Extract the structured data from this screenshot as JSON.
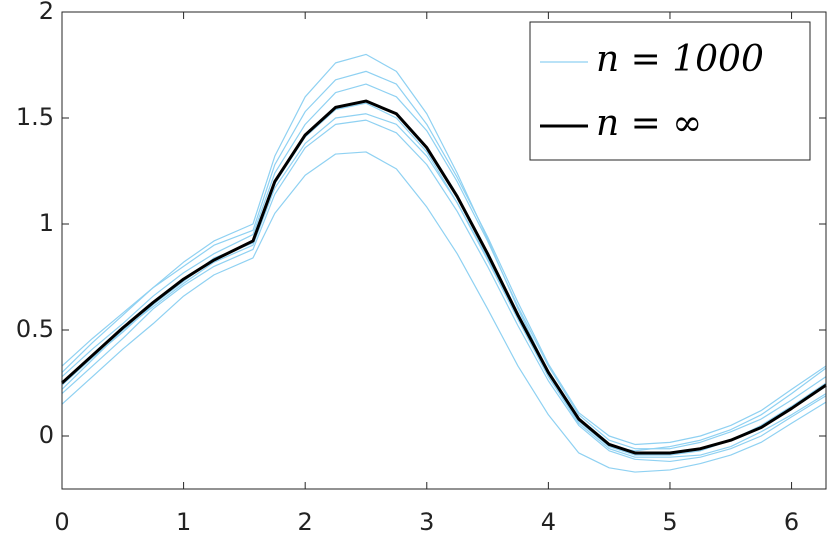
{
  "chart_data": {
    "type": "line",
    "x": [
      0,
      0.25,
      0.5,
      0.75,
      1,
      1.25,
      1.5708,
      1.75,
      2,
      2.25,
      2.5,
      2.75,
      3,
      3.25,
      3.5,
      3.75,
      4,
      4.25,
      4.5,
      4.7124,
      5,
      5.25,
      5.5,
      5.75,
      6,
      6.2832
    ],
    "series": [
      {
        "name": "n = 1000",
        "color": "#8fd1f2",
        "values": [
          0.3,
          0.44,
          0.57,
          0.7,
          0.82,
          0.92,
          1.0,
          1.32,
          1.6,
          1.76,
          1.8,
          1.72,
          1.52,
          1.24,
          0.93,
          0.6,
          0.3,
          0.07,
          -0.05,
          -0.07,
          -0.05,
          -0.02,
          0.03,
          0.1,
          0.2,
          0.32
        ]
      },
      {
        "color": "#8fd1f2",
        "values": [
          0.15,
          0.28,
          0.41,
          0.53,
          0.66,
          0.76,
          0.84,
          1.05,
          1.23,
          1.33,
          1.34,
          1.26,
          1.08,
          0.86,
          0.6,
          0.33,
          0.1,
          -0.08,
          -0.15,
          -0.17,
          -0.16,
          -0.13,
          -0.09,
          -0.03,
          0.06,
          0.16
        ]
      },
      {
        "color": "#8fd1f2",
        "values": [
          0.22,
          0.36,
          0.5,
          0.61,
          0.72,
          0.82,
          0.9,
          1.17,
          1.38,
          1.5,
          1.52,
          1.47,
          1.32,
          1.1,
          0.84,
          0.55,
          0.28,
          0.06,
          -0.06,
          -0.1,
          -0.1,
          -0.09,
          -0.05,
          0.02,
          0.1,
          0.2
        ]
      },
      {
        "color": "#8fd1f2",
        "values": [
          0.28,
          0.41,
          0.53,
          0.66,
          0.77,
          0.86,
          0.95,
          1.24,
          1.47,
          1.62,
          1.66,
          1.6,
          1.44,
          1.2,
          0.92,
          0.61,
          0.33,
          0.1,
          -0.02,
          -0.06,
          -0.06,
          -0.03,
          0.02,
          0.08,
          0.17,
          0.28
        ]
      },
      {
        "color": "#8fd1f2",
        "values": [
          0.2,
          0.33,
          0.46,
          0.6,
          0.71,
          0.8,
          0.88,
          1.14,
          1.36,
          1.47,
          1.49,
          1.43,
          1.28,
          1.06,
          0.8,
          0.52,
          0.26,
          0.05,
          -0.07,
          -0.11,
          -0.12,
          -0.1,
          -0.06,
          0,
          0.09,
          0.19
        ]
      },
      {
        "color": "#8fd1f2",
        "values": [
          0.33,
          0.46,
          0.58,
          0.7,
          0.8,
          0.9,
          0.97,
          1.28,
          1.53,
          1.68,
          1.72,
          1.66,
          1.47,
          1.22,
          0.94,
          0.63,
          0.34,
          0.11,
          0,
          -0.04,
          -0.03,
          0,
          0.05,
          0.12,
          0.22,
          0.33
        ]
      },
      {
        "color": "#8fd1f2",
        "values": [
          0.24,
          0.37,
          0.49,
          0.62,
          0.73,
          0.84,
          0.91,
          1.19,
          1.41,
          1.54,
          1.57,
          1.5,
          1.34,
          1.1,
          0.83,
          0.55,
          0.28,
          0.07,
          -0.05,
          -0.09,
          -0.09,
          -0.07,
          -0.02,
          0.05,
          0.14,
          0.25
        ]
      },
      {
        "name": "n = ∞",
        "color": "#000000",
        "width": 3,
        "values": [
          0.25,
          0.38,
          0.51,
          0.63,
          0.74,
          0.83,
          0.92,
          1.2,
          1.42,
          1.55,
          1.58,
          1.52,
          1.36,
          1.13,
          0.86,
          0.57,
          0.3,
          0.08,
          -0.04,
          -0.08,
          -0.08,
          -0.06,
          -0.02,
          0.04,
          0.13,
          0.24
        ]
      }
    ],
    "xlim": [
      0,
      6.2832
    ],
    "xticks": [
      0,
      1,
      2,
      3,
      4,
      5,
      6
    ],
    "ylim": [
      -0.25,
      2
    ],
    "yticks": [
      0,
      0.5,
      1,
      1.5,
      2
    ],
    "legend": "upper right"
  }
}
